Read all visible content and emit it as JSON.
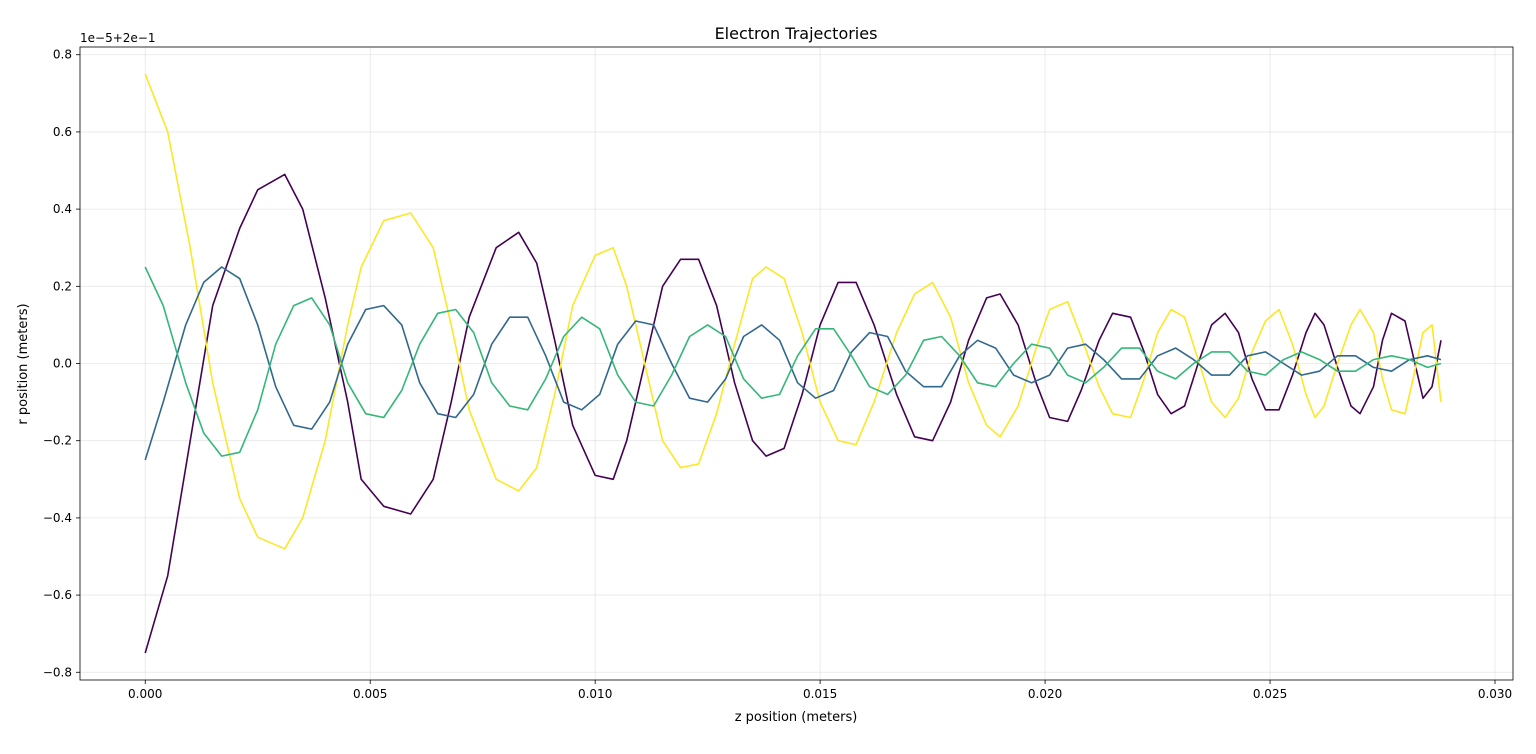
{
  "chart_data": {
    "type": "line",
    "title": "Electron Trajectories",
    "xlabel": "z position (meters)",
    "ylabel": "r position (meters)",
    "y_offset_label": "1e−5+2e−1",
    "xlim": [
      -0.00145,
      0.0304
    ],
    "ylim": [
      -0.82,
      0.82
    ],
    "grid": true,
    "x_ticks": [
      0.0,
      0.005,
      0.01,
      0.015,
      0.02,
      0.025,
      0.03
    ],
    "x_tick_labels": [
      "0.000",
      "0.005",
      "0.010",
      "0.015",
      "0.020",
      "0.025",
      "0.030"
    ],
    "y_ticks": [
      -0.8,
      -0.6,
      -0.4,
      -0.2,
      0.0,
      0.2,
      0.4,
      0.6,
      0.8
    ],
    "y_tick_labels": [
      "−0.8",
      "−0.6",
      "−0.4",
      "−0.2",
      "0.0",
      "0.2",
      "0.4",
      "0.6",
      "0.8"
    ],
    "series": [
      {
        "color": "#440154",
        "x": [
          0.0,
          0.0005,
          0.001,
          0.0015,
          0.0021,
          0.0025,
          0.0031,
          0.0035,
          0.004,
          0.0045,
          0.0048,
          0.0053,
          0.0059,
          0.0064,
          0.0068,
          0.0072,
          0.0078,
          0.0083,
          0.0087,
          0.0091,
          0.0095,
          0.01,
          0.0104,
          0.0107,
          0.0111,
          0.0115,
          0.0119,
          0.0123,
          0.0127,
          0.0131,
          0.0135,
          0.0138,
          0.0142,
          0.0146,
          0.015,
          0.0154,
          0.0158,
          0.0162,
          0.0167,
          0.0171,
          0.0175,
          0.0179,
          0.0183,
          0.0187,
          0.019,
          0.0194,
          0.0198,
          0.0201,
          0.0205,
          0.0208,
          0.0212,
          0.0215,
          0.0219,
          0.0222,
          0.0225,
          0.0228,
          0.0231,
          0.0234,
          0.0237,
          0.024,
          0.0243,
          0.0246,
          0.0249,
          0.0252,
          0.0255,
          0.0258,
          0.026,
          0.0262,
          0.0265,
          0.0268,
          0.027,
          0.0273,
          0.0275,
          0.0277,
          0.028,
          0.0282,
          0.0284,
          0.0286,
          0.0288
        ],
        "y": [
          -0.75,
          -0.55,
          -0.2,
          0.15,
          0.35,
          0.45,
          0.49,
          0.4,
          0.17,
          -0.1,
          -0.3,
          -0.37,
          -0.39,
          -0.3,
          -0.1,
          0.12,
          0.3,
          0.34,
          0.26,
          0.06,
          -0.16,
          -0.29,
          -0.3,
          -0.2,
          0.0,
          0.2,
          0.27,
          0.27,
          0.15,
          -0.05,
          -0.2,
          -0.24,
          -0.22,
          -0.08,
          0.1,
          0.21,
          0.21,
          0.1,
          -0.08,
          -0.19,
          -0.2,
          -0.1,
          0.06,
          0.17,
          0.18,
          0.1,
          -0.05,
          -0.14,
          -0.15,
          -0.07,
          0.06,
          0.13,
          0.12,
          0.03,
          -0.08,
          -0.13,
          -0.11,
          0.0,
          0.1,
          0.13,
          0.08,
          -0.04,
          -0.12,
          -0.12,
          -0.03,
          0.08,
          0.13,
          0.1,
          -0.01,
          -0.11,
          -0.13,
          -0.06,
          0.06,
          0.13,
          0.11,
          0.01,
          -0.09,
          -0.06,
          0.06
        ]
      },
      {
        "color": "#fde725",
        "x": [
          0.0,
          0.0005,
          0.001,
          0.0015,
          0.0021,
          0.0025,
          0.0031,
          0.0035,
          0.004,
          0.0045,
          0.0048,
          0.0053,
          0.0059,
          0.0064,
          0.0068,
          0.0072,
          0.0078,
          0.0083,
          0.0087,
          0.0091,
          0.0095,
          0.01,
          0.0104,
          0.0107,
          0.0111,
          0.0115,
          0.0119,
          0.0123,
          0.0127,
          0.0131,
          0.0135,
          0.0138,
          0.0142,
          0.0146,
          0.015,
          0.0154,
          0.0158,
          0.0162,
          0.0167,
          0.0171,
          0.0175,
          0.0179,
          0.0183,
          0.0187,
          0.019,
          0.0194,
          0.0198,
          0.0201,
          0.0205,
          0.0208,
          0.0212,
          0.0215,
          0.0219,
          0.0222,
          0.0225,
          0.0228,
          0.0231,
          0.0234,
          0.0237,
          0.024,
          0.0243,
          0.0246,
          0.0249,
          0.0252,
          0.0255,
          0.0258,
          0.026,
          0.0262,
          0.0265,
          0.0268,
          0.027,
          0.0273,
          0.0275,
          0.0277,
          0.028,
          0.0282,
          0.0284,
          0.0286,
          0.0288
        ],
        "y": [
          0.75,
          0.6,
          0.3,
          -0.05,
          -0.35,
          -0.45,
          -0.48,
          -0.4,
          -0.2,
          0.1,
          0.25,
          0.37,
          0.39,
          0.3,
          0.1,
          -0.12,
          -0.3,
          -0.33,
          -0.27,
          -0.08,
          0.15,
          0.28,
          0.3,
          0.2,
          0.0,
          -0.2,
          -0.27,
          -0.26,
          -0.13,
          0.05,
          0.22,
          0.25,
          0.22,
          0.08,
          -0.1,
          -0.2,
          -0.21,
          -0.1,
          0.08,
          0.18,
          0.21,
          0.12,
          -0.05,
          -0.16,
          -0.19,
          -0.11,
          0.04,
          0.14,
          0.16,
          0.07,
          -0.06,
          -0.13,
          -0.14,
          -0.04,
          0.08,
          0.14,
          0.12,
          0.01,
          -0.1,
          -0.14,
          -0.09,
          0.03,
          0.11,
          0.14,
          0.05,
          -0.08,
          -0.14,
          -0.11,
          0.0,
          0.1,
          0.14,
          0.08,
          -0.04,
          -0.12,
          -0.13,
          -0.03,
          0.08,
          0.1,
          -0.1
        ]
      },
      {
        "color": "#31688e",
        "x": [
          0.0,
          0.0004,
          0.0009,
          0.0013,
          0.0017,
          0.0021,
          0.0025,
          0.0029,
          0.0033,
          0.0037,
          0.0041,
          0.0045,
          0.0049,
          0.0053,
          0.0057,
          0.0061,
          0.0065,
          0.0069,
          0.0073,
          0.0077,
          0.0081,
          0.0085,
          0.0089,
          0.0093,
          0.0097,
          0.0101,
          0.0105,
          0.0109,
          0.0113,
          0.0117,
          0.0121,
          0.0125,
          0.0129,
          0.0133,
          0.0137,
          0.0141,
          0.0145,
          0.0149,
          0.0153,
          0.0157,
          0.0161,
          0.0165,
          0.0169,
          0.0173,
          0.0177,
          0.0181,
          0.0185,
          0.0189,
          0.0193,
          0.0197,
          0.0201,
          0.0205,
          0.0209,
          0.0213,
          0.0217,
          0.0221,
          0.0225,
          0.0229,
          0.0233,
          0.0237,
          0.0241,
          0.0245,
          0.0249,
          0.0253,
          0.0257,
          0.0261,
          0.0265,
          0.0269,
          0.0273,
          0.0277,
          0.0281,
          0.0285,
          0.0288
        ],
        "y": [
          -0.25,
          -0.1,
          0.1,
          0.21,
          0.25,
          0.22,
          0.1,
          -0.06,
          -0.16,
          -0.17,
          -0.1,
          0.05,
          0.14,
          0.15,
          0.1,
          -0.05,
          -0.13,
          -0.14,
          -0.08,
          0.05,
          0.12,
          0.12,
          0.02,
          -0.1,
          -0.12,
          -0.08,
          0.05,
          0.11,
          0.1,
          0.0,
          -0.09,
          -0.1,
          -0.04,
          0.07,
          0.1,
          0.06,
          -0.05,
          -0.09,
          -0.07,
          0.03,
          0.08,
          0.07,
          -0.02,
          -0.06,
          -0.06,
          0.02,
          0.06,
          0.04,
          -0.03,
          -0.05,
          -0.03,
          0.04,
          0.05,
          0.01,
          -0.04,
          -0.04,
          0.02,
          0.04,
          0.01,
          -0.03,
          -0.03,
          0.02,
          0.03,
          0.0,
          -0.03,
          -0.02,
          0.02,
          0.02,
          -0.01,
          -0.02,
          0.01,
          0.02,
          0.01
        ]
      },
      {
        "color": "#35b779",
        "x": [
          0.0,
          0.0004,
          0.0009,
          0.0013,
          0.0017,
          0.0021,
          0.0025,
          0.0029,
          0.0033,
          0.0037,
          0.0041,
          0.0045,
          0.0049,
          0.0053,
          0.0057,
          0.0061,
          0.0065,
          0.0069,
          0.0073,
          0.0077,
          0.0081,
          0.0085,
          0.0089,
          0.0093,
          0.0097,
          0.0101,
          0.0105,
          0.0109,
          0.0113,
          0.0117,
          0.0121,
          0.0125,
          0.0129,
          0.0133,
          0.0137,
          0.0141,
          0.0145,
          0.0149,
          0.0153,
          0.0157,
          0.0161,
          0.0165,
          0.0169,
          0.0173,
          0.0177,
          0.0181,
          0.0185,
          0.0189,
          0.0193,
          0.0197,
          0.0201,
          0.0205,
          0.0209,
          0.0213,
          0.0217,
          0.0221,
          0.0225,
          0.0229,
          0.0233,
          0.0237,
          0.0241,
          0.0245,
          0.0249,
          0.0253,
          0.0257,
          0.0261,
          0.0265,
          0.0269,
          0.0273,
          0.0277,
          0.0281,
          0.0285,
          0.0288
        ],
        "y": [
          0.25,
          0.15,
          -0.05,
          -0.18,
          -0.24,
          -0.23,
          -0.12,
          0.05,
          0.15,
          0.17,
          0.1,
          -0.05,
          -0.13,
          -0.14,
          -0.07,
          0.05,
          0.13,
          0.14,
          0.08,
          -0.05,
          -0.11,
          -0.12,
          -0.04,
          0.07,
          0.12,
          0.09,
          -0.03,
          -0.1,
          -0.11,
          -0.03,
          0.07,
          0.1,
          0.07,
          -0.04,
          -0.09,
          -0.08,
          0.02,
          0.09,
          0.09,
          0.02,
          -0.06,
          -0.08,
          -0.03,
          0.06,
          0.07,
          0.02,
          -0.05,
          -0.06,
          0.0,
          0.05,
          0.04,
          -0.03,
          -0.05,
          -0.01,
          0.04,
          0.04,
          -0.02,
          -0.04,
          0.0,
          0.03,
          0.03,
          -0.02,
          -0.03,
          0.01,
          0.03,
          0.01,
          -0.02,
          -0.02,
          0.01,
          0.02,
          0.01,
          -0.01,
          0.0
        ]
      }
    ]
  }
}
